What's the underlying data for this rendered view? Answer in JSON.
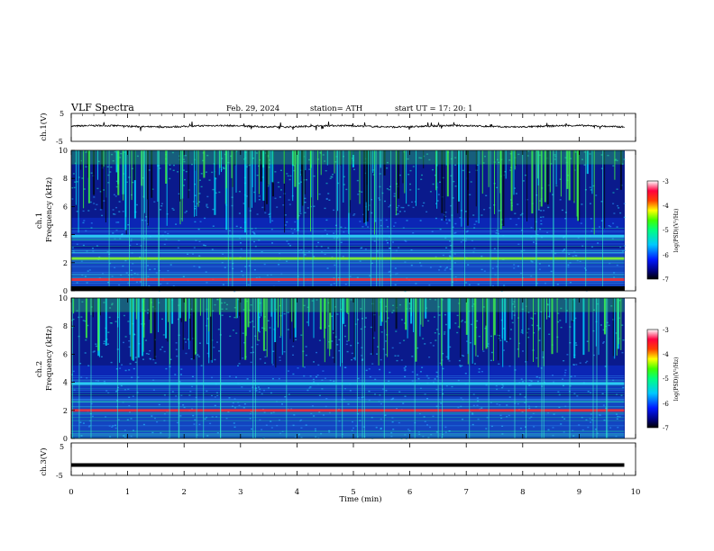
{
  "header": {
    "title": "VLF  Spectra",
    "date": "Feb. 29, 2024",
    "station": "station= ATH",
    "start": "start  UT  =   17: 20: 1"
  },
  "chart_data": [
    {
      "type": "line",
      "name": "ch1-voltage",
      "ylabel": "ch.1(V)",
      "ylim": [
        -5,
        5
      ],
      "yticks": [
        "5",
        "-5"
      ],
      "x_range": [
        0,
        9.8
      ],
      "mean_level": 0.4,
      "noise_amplitude": 0.6
    },
    {
      "type": "heatmap",
      "name": "ch1-spectrogram",
      "ylabel_line1": "ch.1",
      "ylabel_line2": "Frequency  (kHz)",
      "ylim": [
        0,
        10
      ],
      "yticks": [
        "0",
        "2",
        "4",
        "6",
        "8",
        "10"
      ],
      "x_range": [
        0,
        9.8
      ],
      "colorbar": {
        "label": "log(PSD)(V²/Hz)",
        "ticks": [
          "-3",
          "-4",
          "-5",
          "-6",
          "-7"
        ],
        "range": [
          -7,
          -3
        ]
      },
      "features": [
        {
          "description": "bright band",
          "freq_khz": 2.3,
          "level": -4.5
        },
        {
          "description": "red band",
          "freq_khz": 0.8,
          "level": -3.6
        },
        {
          "description": "tone band",
          "freq_khz": 3.9,
          "level": -5.0
        }
      ]
    },
    {
      "type": "heatmap",
      "name": "ch2-spectrogram",
      "ylabel_line1": "ch.2",
      "ylabel_line2": "Frequency  (kHz)",
      "ylim": [
        0,
        10
      ],
      "yticks": [
        "0",
        "2",
        "4",
        "6",
        "8",
        "10"
      ],
      "x_range": [
        0,
        9.8
      ],
      "colorbar": {
        "label": "log(PSD)(V²/Hz)",
        "ticks": [
          "-3",
          "-4",
          "-5",
          "-6",
          "-7"
        ],
        "range": [
          -7,
          -3
        ]
      },
      "features": [
        {
          "description": "red band",
          "freq_khz": 2.0,
          "level": -3.8
        },
        {
          "description": "tone band",
          "freq_khz": 3.9,
          "level": -4.8
        }
      ]
    },
    {
      "type": "line",
      "name": "ch3-voltage",
      "ylabel": "ch.3(V)",
      "ylim": [
        -5,
        5
      ],
      "yticks": [
        "5",
        "-5"
      ],
      "x_range": [
        0,
        9.8
      ],
      "mean_level": -1.8
    }
  ],
  "xaxis": {
    "label": "Time  (min)",
    "ticks": [
      "0",
      "1",
      "2",
      "3",
      "4",
      "5",
      "6",
      "7",
      "8",
      "9",
      "10"
    ],
    "range": [
      0,
      10
    ]
  }
}
